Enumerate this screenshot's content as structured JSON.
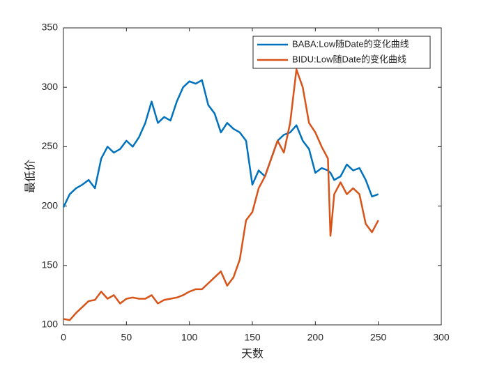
{
  "chart_data": {
    "type": "line",
    "xlabel": "天数",
    "ylabel": "最低价",
    "x": [
      0,
      5,
      10,
      15,
      20,
      25,
      30,
      35,
      40,
      45,
      50,
      55,
      60,
      65,
      70,
      75,
      80,
      85,
      90,
      95,
      100,
      105,
      110,
      115,
      120,
      125,
      130,
      135,
      140,
      145,
      150,
      155,
      160,
      165,
      170,
      175,
      180,
      185,
      190,
      195,
      200,
      205,
      210,
      212,
      215,
      220,
      225,
      230,
      235,
      240,
      245,
      250
    ],
    "series": [
      {
        "name": "BABA:Low随Date的变化曲线",
        "color": "#0072BD",
        "values": [
          199,
          210,
          215,
          218,
          222,
          215,
          240,
          250,
          245,
          248,
          255,
          250,
          258,
          270,
          288,
          270,
          275,
          272,
          288,
          300,
          305,
          303,
          306,
          285,
          278,
          262,
          270,
          265,
          262,
          255,
          218,
          230,
          225,
          240,
          255,
          260,
          262,
          268,
          255,
          248,
          228,
          232,
          230,
          228,
          222,
          225,
          235,
          230,
          232,
          222,
          208,
          210
        ]
      },
      {
        "name": "BIDU:Low随Date的变化曲线",
        "color": "#D95319",
        "values": [
          105,
          104,
          110,
          115,
          120,
          121,
          128,
          122,
          125,
          118,
          122,
          123,
          122,
          122,
          125,
          118,
          121,
          122,
          123,
          125,
          128,
          130,
          130,
          135,
          140,
          145,
          133,
          140,
          155,
          188,
          195,
          215,
          225,
          240,
          255,
          245,
          270,
          315,
          300,
          270,
          262,
          250,
          240,
          175,
          210,
          220,
          210,
          215,
          210,
          185,
          178,
          188
        ]
      }
    ],
    "xlim": [
      0,
      300
    ],
    "xticks": [
      0,
      50,
      100,
      150,
      200,
      250,
      300
    ],
    "ylim": [
      100,
      350
    ],
    "yticks": [
      100,
      150,
      200,
      250,
      300,
      350
    ],
    "legend": "top-right"
  }
}
